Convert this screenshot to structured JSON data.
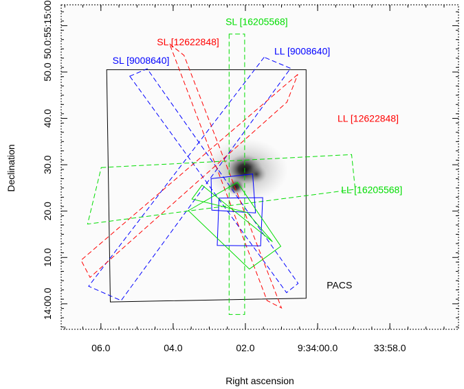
{
  "chart_data": {
    "type": "sky-map",
    "xlabel": "Right ascension",
    "ylabel": "Declination",
    "x_ticks": [
      {
        "ra_s": 6.0,
        "label": "06.0"
      },
      {
        "ra_s": 4.0,
        "label": "04.0"
      },
      {
        "ra_s": 2.0,
        "label": "02.0"
      },
      {
        "ra_s": 0.0,
        "label": "9:34:00.0"
      },
      {
        "ra_s": -2.0,
        "label": "33:58.0"
      }
    ],
    "y_ticks": [
      {
        "dec_s": 60,
        "label": "50.0"
      },
      {
        "dec_s": 50,
        "label": "40.0"
      },
      {
        "dec_s": 40,
        "label": "30.0"
      },
      {
        "dec_s": 30,
        "label": "20.0"
      },
      {
        "dec_s": 20,
        "label": "10.0"
      },
      {
        "dec_s": 10,
        "label": "14:00.0"
      },
      {
        "dec_s": 70,
        "label": "50.0:55:15:00.0"
      }
    ],
    "xlim_ra_s": [
      7.1,
      -3.9
    ],
    "ylim_dec_s": [
      4.5,
      74.5
    ],
    "image": "greyscale source emission (two compact peaks near RA 01.6, Dec 28)",
    "colors": {
      "SL_9008640": "#0000ff",
      "LL_9008640": "#0000ff",
      "SL_12622848": "#ff0000",
      "LL_12622848": "#ff0000",
      "SL_16205568": "#00dd00",
      "LL_16205568": "#00dd00",
      "PACS": "#000000"
    },
    "apertures": [
      {
        "label": "PACS",
        "color": "#000000",
        "dashed": false,
        "corners": [
          [
            5.84,
            60.5
          ],
          [
            0.32,
            60.5
          ],
          [
            0.32,
            11.2
          ],
          [
            5.74,
            10.4
          ]
        ],
        "label_at": [
          -0.25,
          13.3
        ]
      },
      {
        "label": "SL [9008640]",
        "color": "#0000ff",
        "dashed": true,
        "corners": [
          [
            5.2,
            59.1
          ],
          [
            0.86,
            12.4
          ],
          [
            0.54,
            14.4
          ],
          [
            4.72,
            60.7
          ]
        ],
        "label_at": [
          5.68,
          61.8
        ]
      },
      {
        "label": "LL [9008640]",
        "color": "#0000ff",
        "dashed": true,
        "corners": [
          [
            1.48,
            63.2
          ],
          [
            6.34,
            13.8
          ],
          [
            5.44,
            10.7
          ],
          [
            0.75,
            60.8
          ]
        ],
        "label_at": [
          1.2,
          63.8
        ]
      },
      {
        "label": "SL [12622848]",
        "color": "#ff0000",
        "dashed": true,
        "corners": [
          [
            4.1,
            66.1
          ],
          [
            3.7,
            63.6
          ],
          [
            1.0,
            9.1
          ],
          [
            1.4,
            10.7
          ]
        ],
        "label_at": [
          4.45,
          65.8
        ]
      },
      {
        "label": "LL [12622848]",
        "color": "#ff0000",
        "dashed": true,
        "corners": [
          [
            0.55,
            59.5
          ],
          [
            6.55,
            19.4
          ],
          [
            6.3,
            15.7
          ],
          [
            0.85,
            53.5
          ]
        ],
        "label_at": [
          -0.55,
          49.3
        ]
      },
      {
        "label": "SL [16205568]",
        "color": "#00dd00",
        "dashed": true,
        "corners": [
          [
            2.45,
            68.2
          ],
          [
            2.45,
            7.7
          ],
          [
            2.02,
            7.7
          ],
          [
            2.02,
            68.2
          ]
        ],
        "label_at": [
          2.55,
          70.1
        ]
      },
      {
        "label": "LL [16205568]",
        "color": "#00dd00",
        "dashed": true,
        "corners": [
          [
            5.99,
            39.4
          ],
          [
            -0.94,
            42.2
          ],
          [
            -1.04,
            34.7
          ],
          [
            6.37,
            27.2
          ]
        ],
        "label_at": [
          -0.65,
          33.9
        ]
      }
    ],
    "polygons": [
      {
        "series": "SL [9008640]",
        "color": "#0000ff",
        "corners": [
          [
            2.95,
            37.0
          ],
          [
            1.8,
            38.0
          ],
          [
            1.72,
            29.6
          ],
          [
            2.93,
            30.2
          ]
        ]
      },
      {
        "series": "SL [9008640]",
        "color": "#0000ff",
        "corners": [
          [
            2.73,
            32.8
          ],
          [
            1.52,
            32.9
          ],
          [
            1.58,
            22.5
          ],
          [
            2.78,
            22.6
          ]
        ]
      },
      {
        "series": "SL [16205568]",
        "color": "#00dd00",
        "corners": [
          [
            3.2,
            35.6
          ],
          [
            1.25,
            23.4
          ],
          [
            1.95,
            29.7
          ],
          [
            3.48,
            32.6
          ]
        ]
      },
      {
        "series": "SL [16205568]",
        "color": "#00dd00",
        "corners": [
          [
            3.58,
            30.1
          ],
          [
            2.22,
            36.2
          ],
          [
            1.02,
            22.4
          ],
          [
            1.89,
            17.5
          ]
        ]
      }
    ]
  }
}
